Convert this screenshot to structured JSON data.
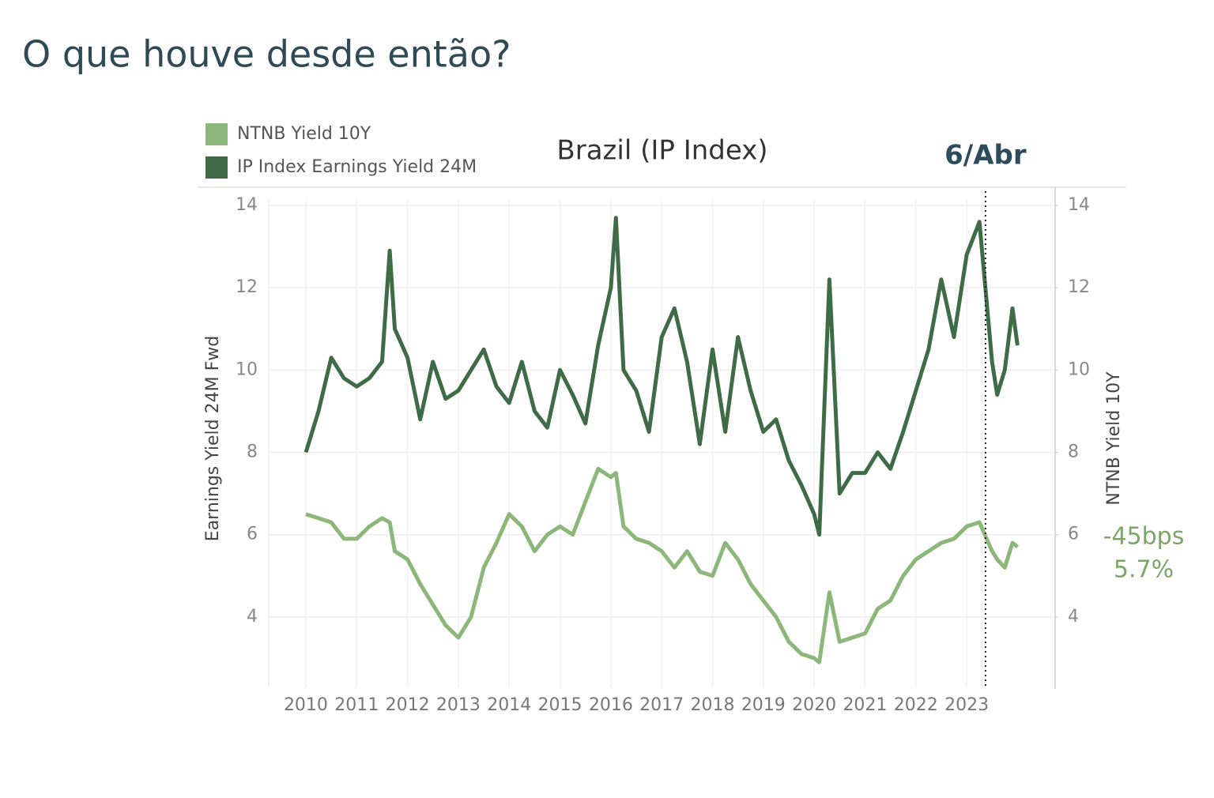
{
  "page": {
    "title": "O que houve desde então?"
  },
  "chart_data": {
    "type": "line",
    "title": "Brazil (IP Index)",
    "ylabel": "Earnings Yield 24M Fwd",
    "y2label": "NTNB Yield 10Y",
    "x": [
      2010,
      2010.25,
      2010.5,
      2010.75,
      2011,
      2011.25,
      2011.5,
      2011.65,
      2011.75,
      2012,
      2012.25,
      2012.5,
      2012.75,
      2013,
      2013.25,
      2013.5,
      2013.75,
      2014,
      2014.25,
      2014.5,
      2014.75,
      2015,
      2015.25,
      2015.5,
      2015.75,
      2016,
      2016.1,
      2016.25,
      2016.5,
      2016.75,
      2017,
      2017.25,
      2017.5,
      2017.75,
      2018,
      2018.25,
      2018.5,
      2018.75,
      2019,
      2019.25,
      2019.5,
      2019.75,
      2020,
      2020.1,
      2020.3,
      2020.5,
      2020.75,
      2021,
      2021.25,
      2021.5,
      2021.75,
      2022,
      2022.25,
      2022.5,
      2022.75,
      2023,
      2023.25,
      2023.5,
      2023.6,
      2023.75,
      2023.9,
      2024
    ],
    "series": [
      {
        "name": "NTNB Yield 10Y",
        "color": "#8db77a",
        "axis": "y2",
        "values": [
          6.5,
          6.4,
          6.3,
          5.9,
          5.9,
          6.2,
          6.4,
          6.3,
          5.6,
          5.4,
          4.8,
          4.3,
          3.8,
          3.5,
          4.0,
          5.2,
          5.8,
          6.5,
          6.2,
          5.6,
          6.0,
          6.2,
          6.0,
          6.8,
          7.6,
          7.4,
          7.5,
          6.2,
          5.9,
          5.8,
          5.6,
          5.2,
          5.6,
          5.1,
          5.0,
          5.8,
          5.4,
          4.8,
          4.4,
          4.0,
          3.4,
          3.1,
          3.0,
          2.9,
          4.6,
          3.4,
          3.5,
          3.6,
          4.2,
          4.4,
          5.0,
          5.4,
          5.6,
          5.8,
          5.9,
          6.2,
          6.3,
          5.6,
          5.4,
          5.2,
          5.8,
          5.7
        ]
      },
      {
        "name": "IP Index Earnings Yield 24M",
        "color": "#3f6b46",
        "values": [
          8.0,
          9.0,
          10.3,
          9.8,
          9.6,
          9.8,
          10.2,
          12.9,
          11.0,
          10.3,
          8.8,
          10.2,
          9.3,
          9.5,
          10.0,
          10.5,
          9.6,
          9.2,
          10.2,
          9.0,
          8.6,
          10.0,
          9.4,
          8.7,
          10.6,
          12.0,
          13.7,
          10.0,
          9.5,
          8.5,
          10.8,
          11.5,
          10.2,
          8.2,
          10.5,
          8.5,
          10.8,
          9.5,
          8.5,
          8.8,
          7.8,
          7.2,
          6.5,
          6.0,
          12.2,
          7.0,
          7.5,
          7.5,
          8.0,
          7.6,
          8.5,
          9.5,
          10.5,
          12.2,
          10.8,
          12.8,
          13.6,
          10.2,
          9.4,
          10.0,
          11.5,
          10.6
        ]
      }
    ],
    "xlim": [
      2009.27,
      2024.74
    ],
    "xticks": [
      2010,
      2011,
      2012,
      2013,
      2014,
      2015,
      2016,
      2017,
      2018,
      2019,
      2020,
      2021,
      2022,
      2023
    ],
    "ylim": [
      2.29,
      14.44
    ],
    "yticks": [
      4,
      6,
      8,
      10,
      12,
      14
    ],
    "y2lim": [
      2.29,
      14.44
    ],
    "y2ticks": [
      4,
      6,
      8,
      10,
      12,
      14
    ],
    "grid": true,
    "legend": "top-left",
    "annotations": [
      {
        "text": "6/Abr",
        "x": 2023.37
      },
      {
        "text": "-45bps"
      },
      {
        "text": "5.7%"
      }
    ]
  }
}
